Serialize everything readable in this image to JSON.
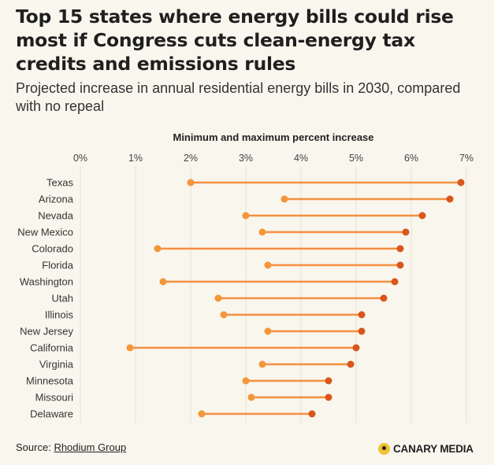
{
  "title": "Top 15 states where energy bills could rise most if Congress cuts clean-energy tax credits and emissions rules",
  "subtitle": "Projected increase in annual residential energy bills in 2030, compared with no repeal",
  "footer": {
    "source_label": "Source:",
    "source_link": "Rhodium Group",
    "brand": "CANARY MEDIA"
  },
  "colors": {
    "min_dot": "#f4963a",
    "max_dot": "#d9561c",
    "line": "#f39040",
    "grid": "#e7e1cf",
    "background": "#f9f6ed"
  },
  "chart_data": {
    "type": "dumbbell",
    "axis_title": "Minimum and maximum percent increase",
    "xlim": [
      0,
      7
    ],
    "ticks": [
      0,
      1,
      2,
      3,
      4,
      5,
      6,
      7
    ],
    "tick_labels": [
      "0%",
      "1%",
      "2%",
      "3%",
      "4%",
      "5%",
      "6%",
      "7%"
    ],
    "grid": true,
    "categories": [
      "Texas",
      "Arizona",
      "Nevada",
      "New Mexico",
      "Colorado",
      "Florida",
      "Washington",
      "Utah",
      "Illinois",
      "New Jersey",
      "California",
      "Virginia",
      "Minnesota",
      "Missouri",
      "Delaware"
    ],
    "series": [
      {
        "name": "Minimum",
        "values": [
          2.0,
          3.7,
          3.0,
          3.3,
          1.4,
          3.4,
          1.5,
          2.5,
          2.6,
          3.4,
          0.9,
          3.3,
          3.0,
          3.1,
          2.2
        ]
      },
      {
        "name": "Maximum",
        "values": [
          6.9,
          6.7,
          6.2,
          5.9,
          5.8,
          5.8,
          5.7,
          5.5,
          5.1,
          5.1,
          5.0,
          4.9,
          4.5,
          4.5,
          4.2
        ]
      }
    ]
  }
}
